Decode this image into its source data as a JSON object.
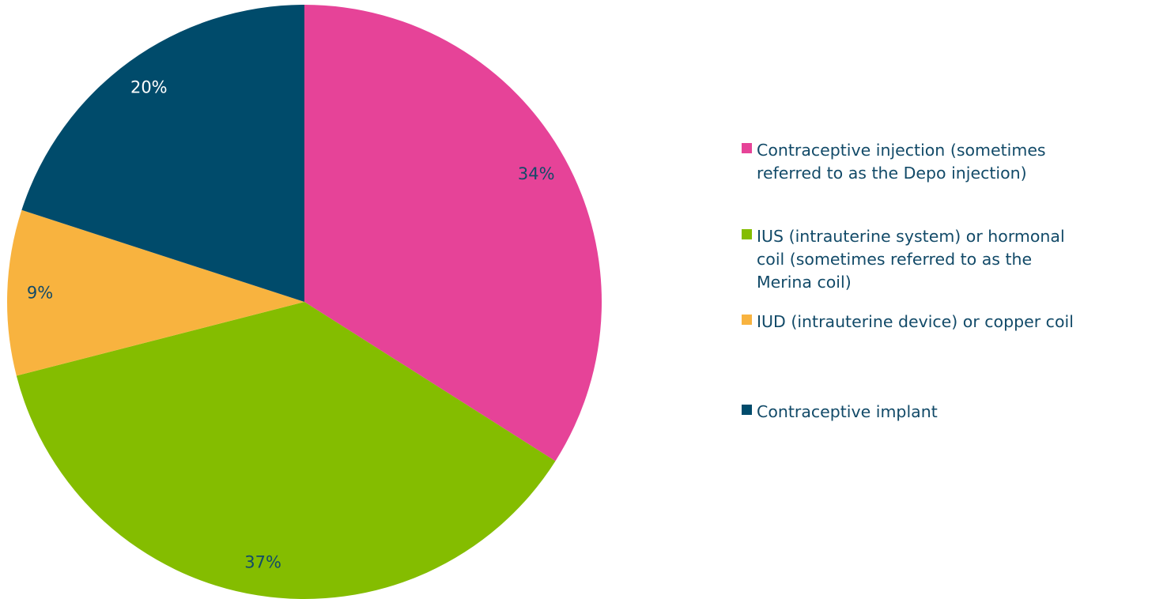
{
  "chart_data": {
    "type": "pie",
    "title": "",
    "slices": [
      {
        "name": "Contraceptive injection (sometimes\nreferred to as the Depo injection)",
        "value": 34,
        "label": "34%",
        "color": "#e64398",
        "label_color": "#124a68"
      },
      {
        "name": "IUS (intrauterine system) or hormonal\ncoil (sometimes referred to as the\nMerina coil)",
        "value": 37,
        "label": "37%",
        "color": "#84bd00",
        "label_color": "#124a68"
      },
      {
        "name": "IUD (intrauterine device) or copper coil",
        "value": 9,
        "label": "9%",
        "color": "#f8b33f",
        "label_color": "#124a68"
      },
      {
        "name": "Contraceptive implant",
        "value": 20,
        "label": "20%",
        "color": "#004b6b",
        "label_color": "#ffffff"
      }
    ],
    "start_angle": "12 o'clock",
    "direction": "clockwise",
    "legend_position": "right"
  }
}
